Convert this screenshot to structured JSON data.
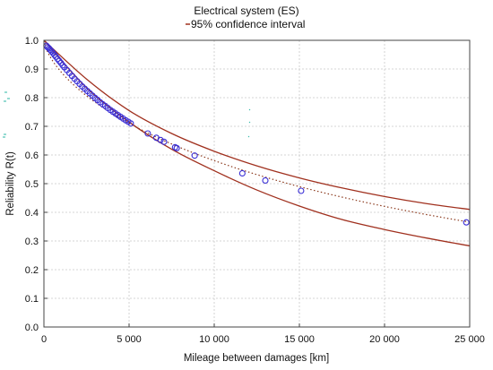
{
  "chart_data": {
    "type": "scatter",
    "title": "Electrical system (ES)",
    "legend": {
      "entries": [
        "95% confidence interval"
      ],
      "placement": "top-center"
    },
    "xlabel": "Mileage between damages [km]",
    "ylabel": "Reliability R(t)",
    "xlim": [
      0,
      25000
    ],
    "ylim": [
      0,
      1.0
    ],
    "xticks": [
      0,
      5000,
      10000,
      15000,
      20000,
      25000
    ],
    "xtick_labels": [
      "0",
      "5 000",
      "10 000",
      "15 000",
      "20 000",
      "25 000"
    ],
    "yticks": [
      0,
      0.1,
      0.2,
      0.3,
      0.4,
      0.5,
      0.6,
      0.7,
      0.8,
      0.9,
      1.0
    ],
    "ytick_labels": [
      "0.0",
      "0.1",
      "0.2",
      "0.3",
      "0.4",
      "0.5",
      "0.6",
      "0.7",
      "0.8",
      "0.9",
      "1.0"
    ],
    "grid": true,
    "fit_model": {
      "form": "weibull",
      "scale": 24800,
      "shape": 0.67
    },
    "confidence_band": {
      "upper": {
        "x": [
          0,
          2500,
          5000,
          7500,
          10000,
          12500,
          15000,
          17500,
          20000,
          22500,
          25000
        ],
        "y": [
          1.0,
          0.865,
          0.755,
          0.675,
          0.613,
          0.562,
          0.52,
          0.485,
          0.455,
          0.43,
          0.41
        ]
      },
      "lower": {
        "x": [
          0,
          2500,
          5000,
          7500,
          10000,
          12500,
          15000,
          17500,
          20000,
          22500,
          25000
        ],
        "y": [
          1.0,
          0.835,
          0.715,
          0.62,
          0.545,
          0.478,
          0.422,
          0.375,
          0.34,
          0.31,
          0.283
        ]
      }
    },
    "points": {
      "x": [
        150,
        220,
        300,
        380,
        460,
        540,
        620,
        700,
        800,
        900,
        1000,
        1100,
        1200,
        1350,
        1500,
        1650,
        1800,
        1950,
        2100,
        2250,
        2400,
        2550,
        2700,
        2850,
        3000,
        3150,
        3300,
        3450,
        3600,
        3750,
        3900,
        4050,
        4200,
        4350,
        4500,
        4650,
        4800,
        4950,
        5100,
        6100,
        6600,
        6850,
        7050,
        7700,
        7800,
        8850,
        11650,
        13000,
        15100,
        24800
      ],
      "y": [
        0.981,
        0.976,
        0.972,
        0.966,
        0.961,
        0.955,
        0.949,
        0.943,
        0.935,
        0.928,
        0.921,
        0.913,
        0.906,
        0.896,
        0.886,
        0.876,
        0.866,
        0.857,
        0.848,
        0.839,
        0.831,
        0.823,
        0.815,
        0.807,
        0.799,
        0.792,
        0.784,
        0.777,
        0.771,
        0.764,
        0.757,
        0.751,
        0.745,
        0.739,
        0.733,
        0.727,
        0.721,
        0.716,
        0.71,
        0.675,
        0.66,
        0.652,
        0.646,
        0.627,
        0.624,
        0.598,
        0.536,
        0.511,
        0.475,
        0.365
      ]
    },
    "colors": {
      "band": "#a0301e",
      "fit": "#8b3a1e",
      "marker": "#3a2fd6",
      "grid": "#c9c9c9",
      "stray": "#2bb7a6"
    }
  }
}
